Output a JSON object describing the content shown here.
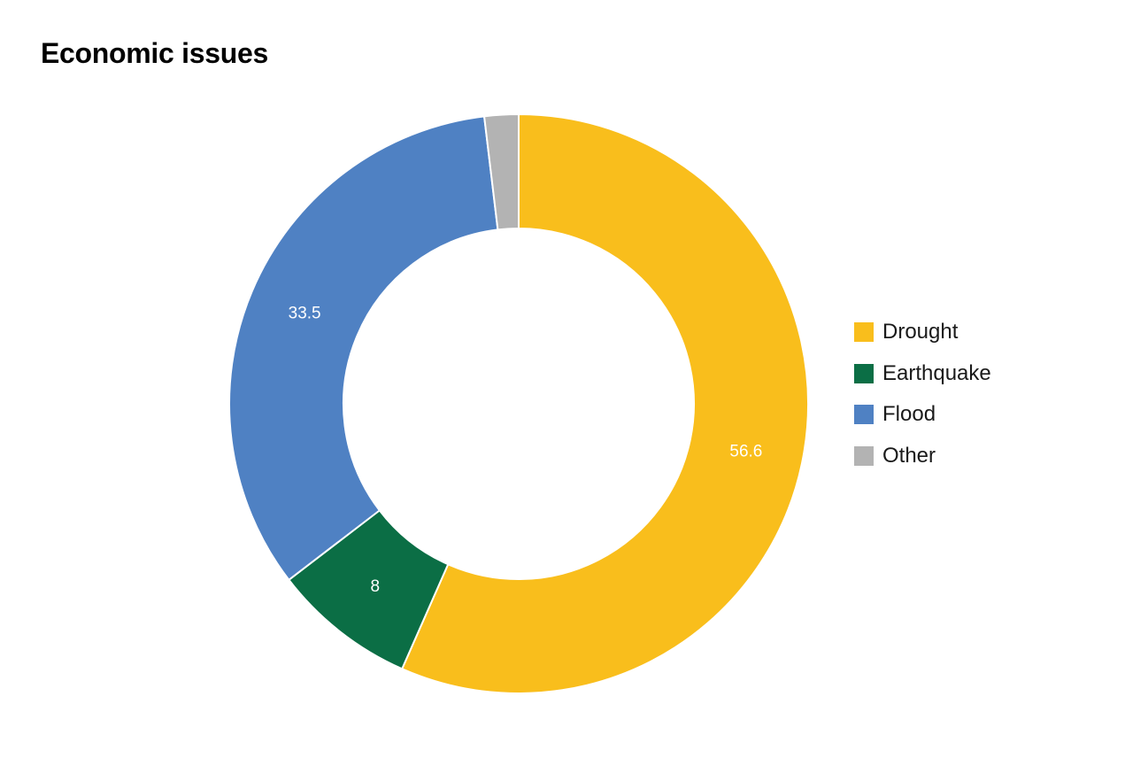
{
  "chart_data": {
    "type": "pie",
    "variant": "donut",
    "title": "Economic issues",
    "series": [
      {
        "name": "Drought",
        "value": 56.6,
        "label": "56.6",
        "color": "#F9BE1C"
      },
      {
        "name": "Earthquake",
        "value": 8,
        "label": "8",
        "color": "#0B6E45"
      },
      {
        "name": "Flood",
        "value": 33.5,
        "label": "33.5",
        "color": "#4F81C3"
      },
      {
        "name": "Other",
        "value": 1.9,
        "label": "",
        "color": "#B3B3B3"
      }
    ],
    "legend_position": "right",
    "start_angle": "top",
    "direction": "clockwise"
  }
}
